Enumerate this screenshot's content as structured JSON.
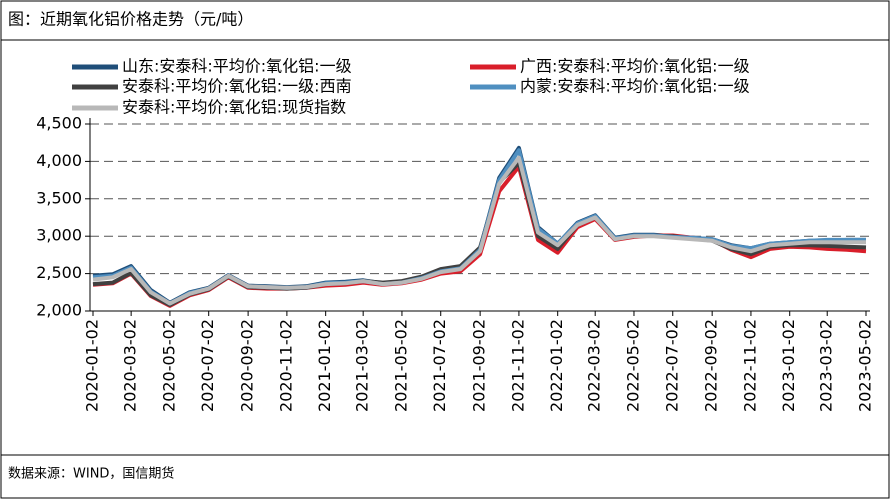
{
  "chart_data": {
    "type": "line",
    "title": "图：近期氧化铝价格走势（元/吨）",
    "source": "数据来源：WIND，国信期货",
    "x": [
      "2020-01-02",
      "2020-02-02",
      "2020-03-02",
      "2020-04-02",
      "2020-05-02",
      "2020-06-02",
      "2020-07-02",
      "2020-08-02",
      "2020-09-02",
      "2020-10-02",
      "2020-11-02",
      "2020-12-02",
      "2021-01-02",
      "2021-02-02",
      "2021-03-02",
      "2021-04-02",
      "2021-05-02",
      "2021-06-02",
      "2021-07-02",
      "2021-08-02",
      "2021-09-02",
      "2021-10-02",
      "2021-11-02",
      "2021-12-02",
      "2022-01-02",
      "2022-02-02",
      "2022-03-02",
      "2022-04-02",
      "2022-05-02",
      "2022-06-02",
      "2022-07-02",
      "2022-08-02",
      "2022-09-02",
      "2022-10-02",
      "2022-11-02",
      "2022-12-02",
      "2023-01-02",
      "2023-02-02",
      "2023-03-02",
      "2023-04-02",
      "2023-05-02"
    ],
    "series": [
      {
        "name": "山东:安泰科:平均价:氧化铝:一级",
        "color": "#1f4e79",
        "values": [
          2470,
          2490,
          2600,
          2280,
          2110,
          2250,
          2310,
          2480,
          2340,
          2330,
          2320,
          2330,
          2380,
          2390,
          2410,
          2370,
          2390,
          2450,
          2540,
          2580,
          2830,
          3780,
          4180,
          3120,
          2900,
          3180,
          3280,
          2980,
          3020,
          3020,
          3000,
          2980,
          2960,
          2880,
          2840,
          2900,
          2920,
          2940,
          2940,
          2950,
          2950
        ]
      },
      {
        "name": "广西:安泰科:平均价:氧化铝:一级",
        "color": "#d91e2a",
        "values": [
          2350,
          2370,
          2500,
          2200,
          2070,
          2210,
          2280,
          2450,
          2310,
          2300,
          2300,
          2310,
          2340,
          2350,
          2380,
          2350,
          2370,
          2420,
          2500,
          2530,
          2760,
          3600,
          3930,
          2950,
          2780,
          3120,
          3230,
          2950,
          2990,
          3010,
          3010,
          2980,
          2950,
          2820,
          2720,
          2830,
          2860,
          2850,
          2830,
          2820,
          2800
        ]
      },
      {
        "name": "安泰科:平均价:氧化铝:一级:西南",
        "color": "#404040",
        "values": [
          2360,
          2380,
          2510,
          2210,
          2080,
          2220,
          2290,
          2460,
          2320,
          2310,
          2300,
          2310,
          2360,
          2370,
          2400,
          2380,
          2400,
          2460,
          2560,
          2600,
          2850,
          3720,
          3980,
          3000,
          2830,
          3150,
          3250,
          2960,
          3000,
          3010,
          3000,
          2970,
          2940,
          2830,
          2760,
          2860,
          2880,
          2880,
          2870,
          2860,
          2850
        ]
      },
      {
        "name": "内蒙:安泰科:平均价:氧化铝:一级",
        "color": "#4f8fc0",
        "values": [
          2450,
          2470,
          2580,
          2260,
          2100,
          2240,
          2300,
          2470,
          2330,
          2320,
          2310,
          2320,
          2370,
          2380,
          2400,
          2360,
          2380,
          2440,
          2530,
          2570,
          2820,
          3750,
          4150,
          3100,
          2900,
          3170,
          3270,
          2970,
          3010,
          3010,
          2990,
          2980,
          2960,
          2870,
          2840,
          2900,
          2920,
          2940,
          2950,
          2950,
          2950
        ]
      },
      {
        "name": "安泰科:平均价:氧化铝:现货指数",
        "color": "#b8b8b8",
        "values": [
          2420,
          2450,
          2560,
          2250,
          2100,
          2230,
          2300,
          2470,
          2330,
          2320,
          2310,
          2320,
          2360,
          2370,
          2400,
          2360,
          2380,
          2430,
          2520,
          2560,
          2800,
          3700,
          4050,
          3050,
          2880,
          3150,
          3250,
          2960,
          3000,
          3000,
          2980,
          2960,
          2940,
          2850,
          2800,
          2880,
          2900,
          2920,
          2920,
          2920,
          2920
        ]
      }
    ],
    "xlim": [
      "2020-01-02",
      "2023-05-02"
    ],
    "xticks": [
      "2020-01-02",
      "2020-03-02",
      "2020-05-02",
      "2020-07-02",
      "2020-09-02",
      "2020-11-02",
      "2021-01-02",
      "2021-03-02",
      "2021-05-02",
      "2021-07-02",
      "2021-09-02",
      "2021-11-02",
      "2022-01-02",
      "2022-03-02",
      "2022-05-02",
      "2022-07-02",
      "2022-09-02",
      "2022-11-02",
      "2023-01-02",
      "2023-03-02",
      "2023-05-02"
    ],
    "ylim": [
      2000,
      4500
    ],
    "yticks": [
      {
        "value": 2000,
        "label": "2,000"
      },
      {
        "value": 2500,
        "label": "2,500"
      },
      {
        "value": 3000,
        "label": "3,000"
      },
      {
        "value": 3500,
        "label": "3,500"
      },
      {
        "value": 4000,
        "label": "4,000"
      },
      {
        "value": 4500,
        "label": "4,500"
      }
    ],
    "grid": true
  }
}
